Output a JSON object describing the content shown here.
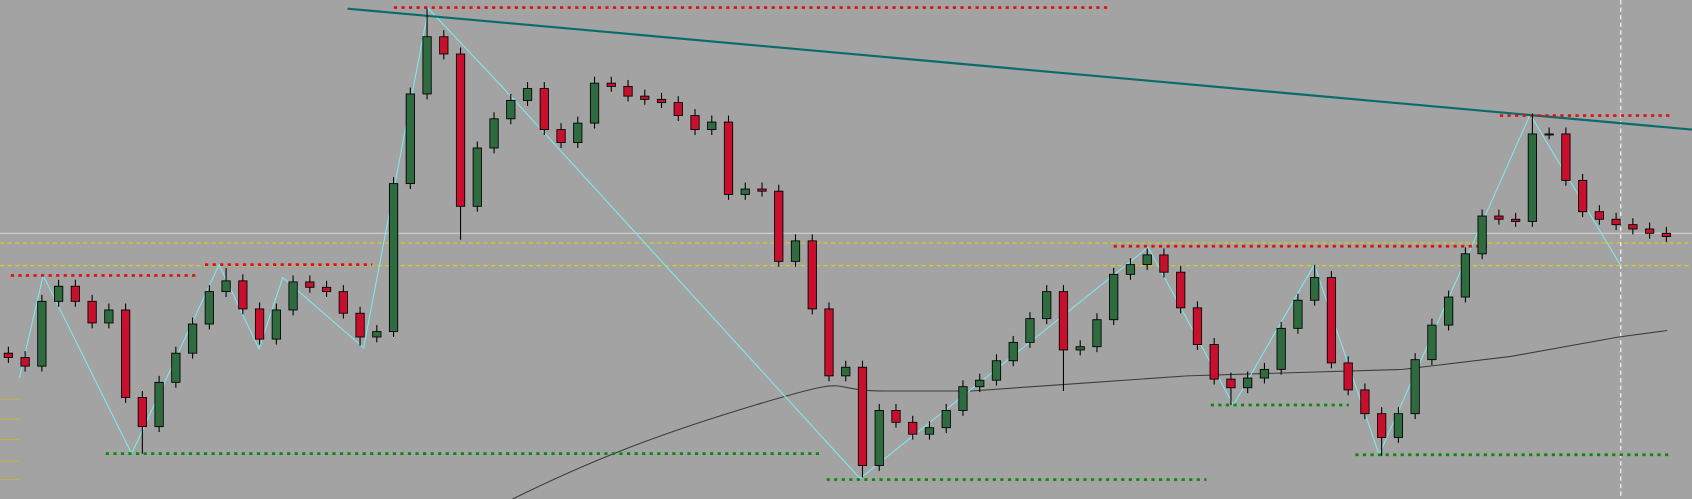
{
  "chart_data": {
    "type": "candlestick",
    "up_color": "#2e6b3f",
    "down_color": "#c8102e",
    "wick_color": "#000000",
    "background": "#a3a3a3",
    "ylim": [
      0,
      462
    ],
    "open": [
      135,
      131,
      123,
      183,
      197,
      183,
      163,
      175,
      94,
      67,
      108,
      135,
      162,
      192,
      202,
      176,
      148,
      175,
      201,
      196,
      192,
      172,
      150,
      155,
      292,
      375,
      428,
      412,
      271,
      325,
      352,
      369,
      380,
      342,
      330,
      348,
      385,
      382,
      373,
      370,
      367,
      355,
      342,
      349,
      282,
      287,
      285,
      220,
      239,
      176,
      114,
      122,
      31,
      82,
      71,
      60,
      66,
      82,
      104,
      110,
      128,
      145,
      167,
      192,
      138,
      141,
      166,
      208,
      217,
      226,
      210,
      177,
      143,
      111,
      103,
      112,
      120,
      158,
      184,
      205,
      126,
      101,
      79,
      57,
      79,
      129,
      161,
      187,
      227,
      262,
      259,
      257,
      338,
      338,
      295,
      266,
      259,
      254,
      250,
      246
    ],
    "high": [
      141,
      137,
      189,
      203,
      203,
      189,
      181,
      181,
      100,
      114,
      141,
      168,
      198,
      214,
      208,
      182,
      181,
      207,
      207,
      202,
      198,
      178,
      161,
      298,
      381,
      454,
      434,
      418,
      331,
      358,
      375,
      386,
      386,
      348,
      354,
      391,
      391,
      388,
      379,
      376,
      373,
      361,
      355,
      355,
      293,
      293,
      291,
      245,
      245,
      182,
      128,
      128,
      88,
      88,
      77,
      72,
      88,
      110,
      116,
      134,
      151,
      173,
      198,
      198,
      147,
      172,
      214,
      223,
      232,
      232,
      216,
      183,
      149,
      117,
      118,
      126,
      164,
      190,
      217,
      211,
      132,
      107,
      85,
      85,
      135,
      167,
      193,
      233,
      268,
      268,
      265,
      357,
      344,
      344,
      301,
      272,
      265,
      260,
      256,
      252
    ],
    "low": [
      126,
      118,
      118,
      178,
      178,
      158,
      158,
      89,
      42,
      62,
      103,
      130,
      157,
      187,
      171,
      143,
      143,
      170,
      191,
      187,
      167,
      142,
      145,
      150,
      287,
      370,
      407,
      240,
      266,
      320,
      347,
      364,
      337,
      325,
      325,
      343,
      377,
      368,
      365,
      362,
      350,
      337,
      337,
      277,
      277,
      280,
      215,
      215,
      171,
      109,
      109,
      20,
      26,
      66,
      55,
      55,
      61,
      77,
      99,
      105,
      123,
      140,
      162,
      100,
      133,
      136,
      161,
      203,
      212,
      205,
      172,
      138,
      106,
      87,
      98,
      107,
      115,
      153,
      179,
      121,
      96,
      74,
      40,
      52,
      74,
      124,
      156,
      182,
      222,
      254,
      252,
      252,
      333,
      290,
      261,
      254,
      249,
      245,
      241,
      238
    ],
    "close": [
      131,
      123,
      183,
      197,
      183,
      163,
      175,
      94,
      67,
      108,
      135,
      162,
      192,
      202,
      176,
      148,
      175,
      201,
      196,
      192,
      172,
      150,
      155,
      292,
      375,
      428,
      412,
      271,
      325,
      352,
      369,
      380,
      342,
      330,
      348,
      385,
      382,
      373,
      370,
      367,
      355,
      342,
      349,
      282,
      287,
      285,
      220,
      239,
      176,
      114,
      122,
      31,
      82,
      71,
      60,
      66,
      82,
      104,
      110,
      128,
      145,
      167,
      192,
      138,
      141,
      166,
      208,
      217,
      226,
      210,
      177,
      143,
      111,
      103,
      112,
      120,
      158,
      184,
      205,
      126,
      101,
      79,
      57,
      79,
      129,
      161,
      187,
      227,
      262,
      259,
      257,
      338,
      338,
      295,
      266,
      259,
      254,
      250,
      246,
      243
    ]
  }
}
